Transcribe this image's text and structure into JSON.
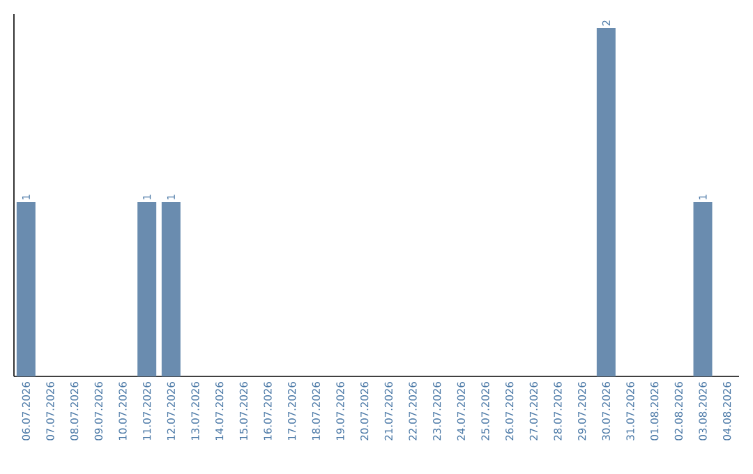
{
  "chart_data": {
    "type": "bar",
    "categories": [
      "06.07.2026",
      "07.07.2026",
      "08.07.2026",
      "09.07.2026",
      "10.07.2026",
      "11.07.2026",
      "12.07.2026",
      "13.07.2026",
      "14.07.2026",
      "15.07.2026",
      "16.07.2026",
      "17.07.2026",
      "18.07.2026",
      "19.07.2026",
      "20.07.2026",
      "21.07.2026",
      "22.07.2026",
      "23.07.2026",
      "24.07.2026",
      "25.07.2026",
      "26.07.2026",
      "27.07.2026",
      "28.07.2026",
      "29.07.2026",
      "30.07.2026",
      "31.07.2026",
      "01.08.2026",
      "02.08.2026",
      "03.08.2026",
      "04.08.2026"
    ],
    "values": [
      1,
      0,
      0,
      0,
      0,
      1,
      1,
      0,
      0,
      0,
      0,
      0,
      0,
      0,
      0,
      0,
      0,
      0,
      0,
      0,
      0,
      0,
      0,
      0,
      2,
      0,
      0,
      0,
      1,
      0
    ],
    "value_labels": [
      "1",
      null,
      null,
      null,
      null,
      "1",
      "1",
      null,
      null,
      null,
      null,
      null,
      null,
      null,
      null,
      null,
      null,
      null,
      null,
      null,
      null,
      null,
      null,
      null,
      "2",
      null,
      null,
      null,
      "1",
      null
    ],
    "color": "#6a8caf",
    "grid": false
  }
}
